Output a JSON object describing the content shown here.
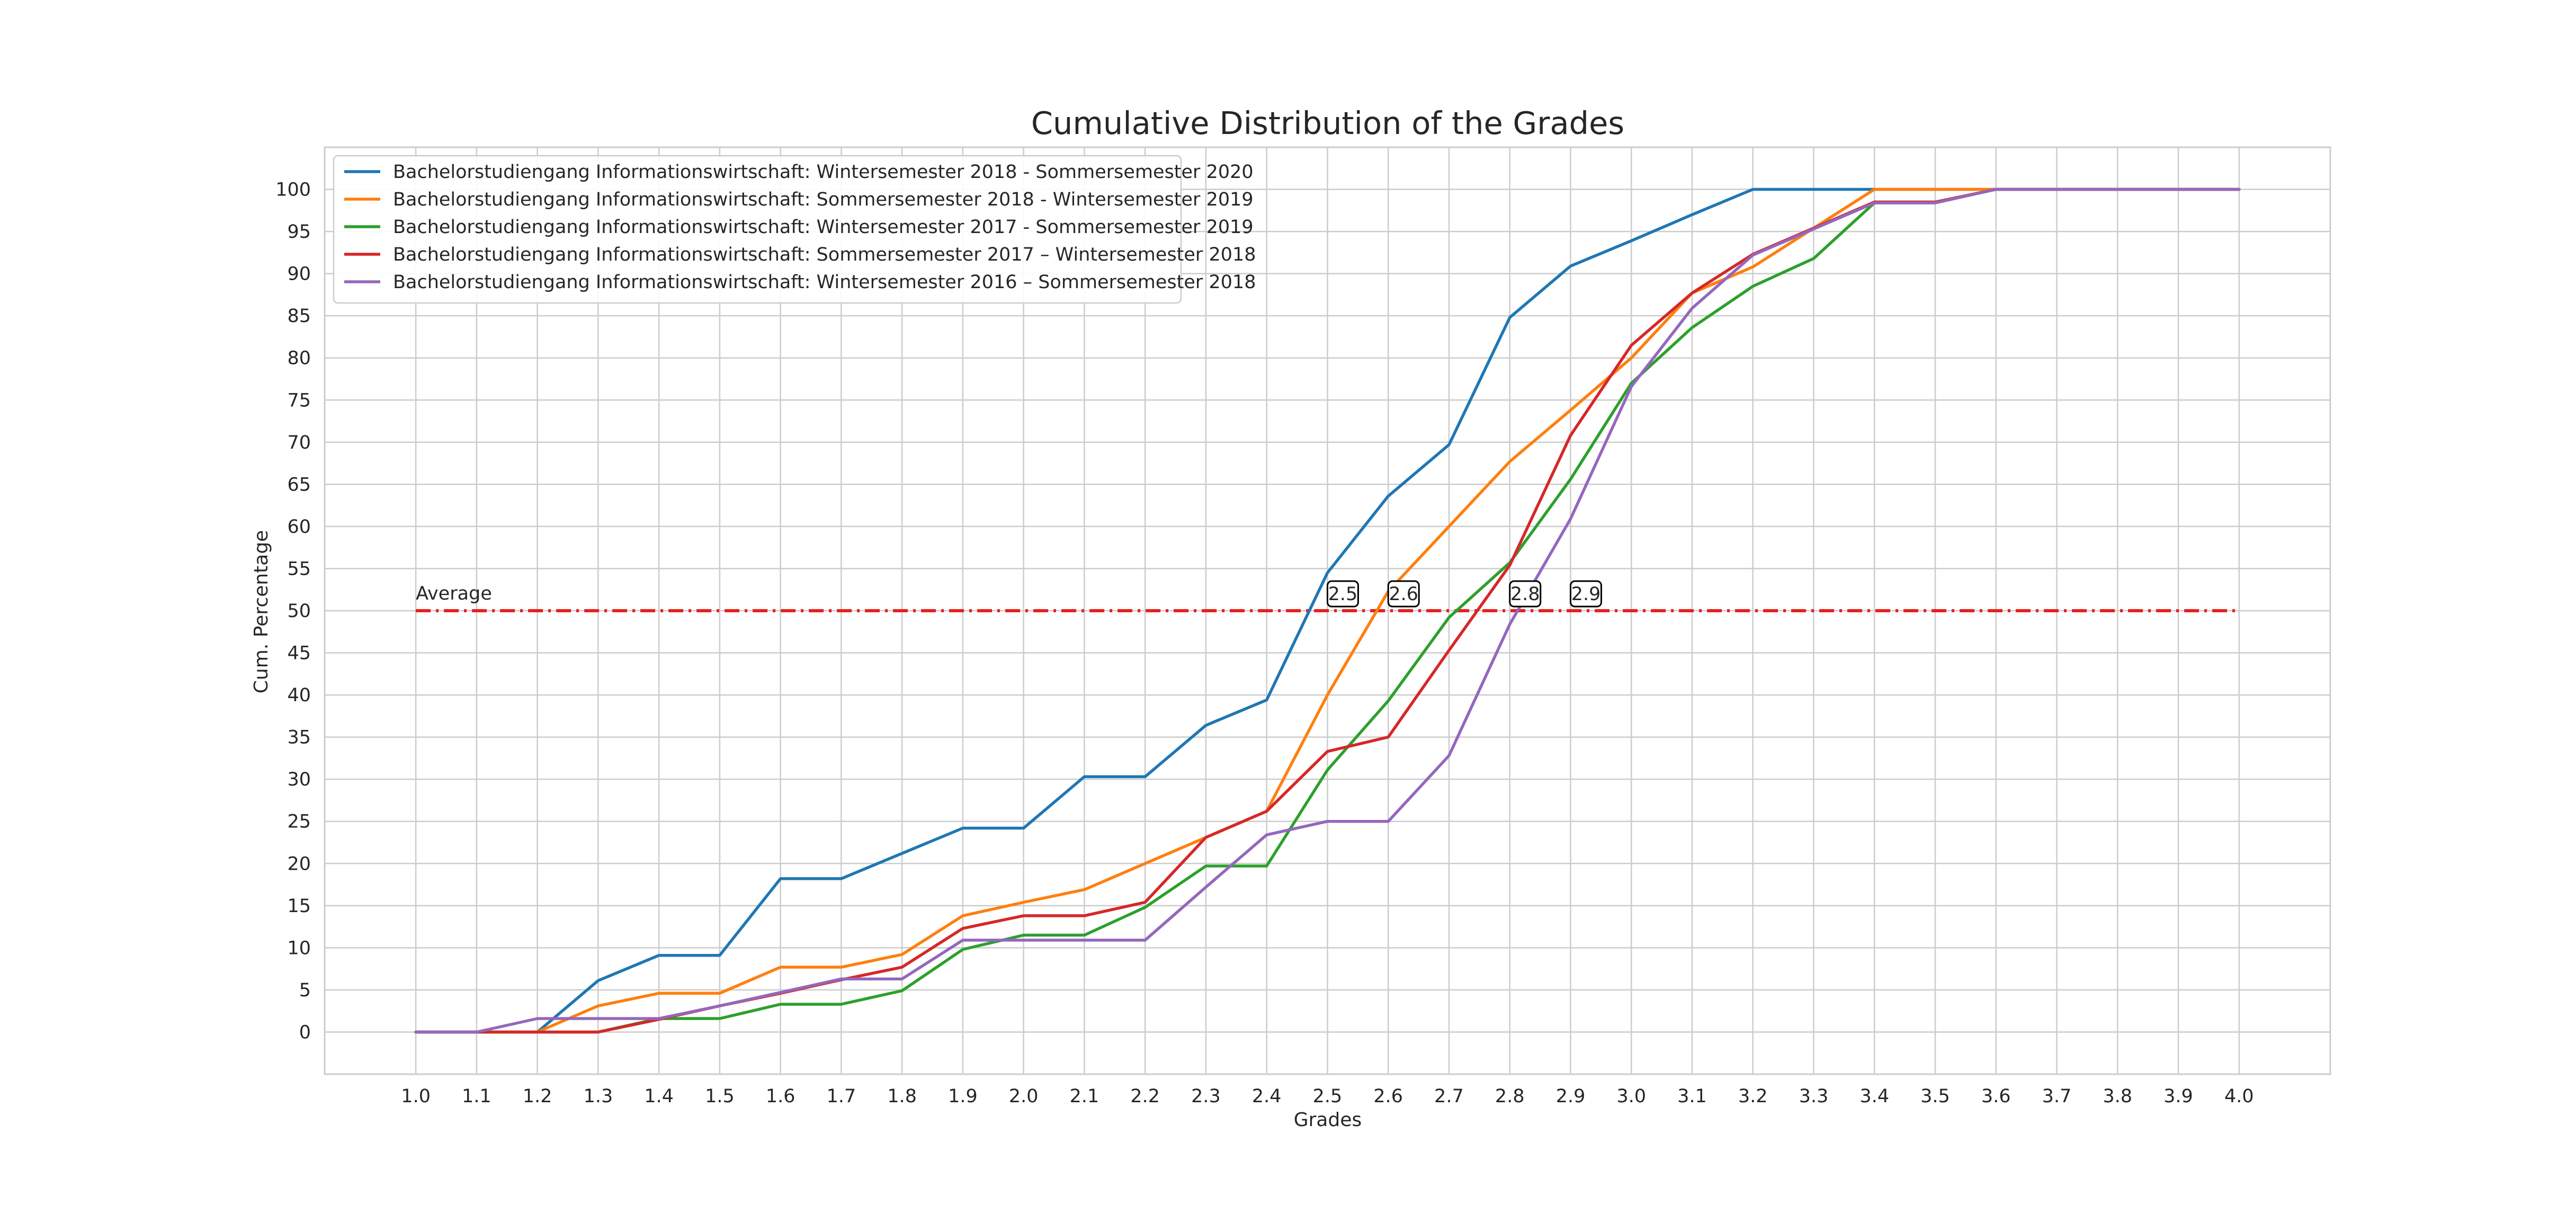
{
  "chart_data": {
    "type": "line",
    "title": "Cumulative Distribution of the Grades",
    "xlabel": "Grades",
    "ylabel": "Cum. Percentage",
    "grid": true,
    "legend_position": "upper-left",
    "xlim": [
      0.85,
      4.15
    ],
    "ylim": [
      -5,
      105
    ],
    "x": [
      1.0,
      1.1,
      1.2,
      1.3,
      1.4,
      1.5,
      1.6,
      1.7,
      1.8,
      1.9,
      2.0,
      2.1,
      2.2,
      2.3,
      2.4,
      2.5,
      2.6,
      2.7,
      2.8,
      2.9,
      3.0,
      3.1,
      3.2,
      3.3,
      3.4,
      3.5,
      3.6,
      3.7,
      3.8,
      3.9,
      4.0
    ],
    "x_tick_labels": [
      "1.0",
      "1.1",
      "1.2",
      "1.3",
      "1.4",
      "1.5",
      "1.6",
      "1.7",
      "1.8",
      "1.9",
      "2.0",
      "2.1",
      "2.2",
      "2.3",
      "2.4",
      "2.5",
      "2.6",
      "2.7",
      "2.8",
      "2.9",
      "3.0",
      "3.1",
      "3.2",
      "3.3",
      "3.4",
      "3.5",
      "3.6",
      "3.7",
      "3.8",
      "3.9",
      "4.0"
    ],
    "y_ticks": [
      0,
      5,
      10,
      15,
      20,
      25,
      30,
      35,
      40,
      45,
      50,
      55,
      60,
      65,
      70,
      75,
      80,
      85,
      90,
      95,
      100
    ],
    "y_tick_labels": [
      "0",
      "5",
      "10",
      "15",
      "20",
      "25",
      "30",
      "35",
      "40",
      "45",
      "50",
      "55",
      "60",
      "65",
      "70",
      "75",
      "80",
      "85",
      "90",
      "95",
      "100"
    ],
    "series": [
      {
        "name": "Bachelorstudiengang Informationswirtschaft: Wintersemester 2018 - Sommersemester 2020",
        "color": "#1f77b4",
        "values": [
          0,
          0,
          0,
          6.1,
          9.1,
          9.1,
          18.2,
          18.2,
          21.2,
          24.2,
          24.2,
          30.3,
          30.3,
          36.4,
          39.4,
          54.5,
          63.6,
          69.7,
          84.8,
          90.9,
          93.9,
          97.0,
          100,
          100,
          100,
          100,
          100,
          100,
          100,
          100,
          100
        ]
      },
      {
        "name": "Bachelorstudiengang Informationswirtschaft: Sommersemester 2018 - Wintersemester 2019",
        "color": "#ff7f0e",
        "values": [
          0,
          0,
          0,
          3.1,
          4.6,
          4.6,
          7.7,
          7.7,
          9.2,
          13.8,
          15.4,
          16.9,
          20.0,
          23.1,
          26.2,
          40.0,
          52.3,
          60.0,
          67.7,
          73.8,
          80.0,
          87.7,
          90.8,
          95.4,
          100,
          100,
          100,
          100,
          100,
          100,
          100
        ]
      },
      {
        "name": "Bachelorstudiengang Informationswirtschaft: Wintersemester 2017 - Sommersemester 2019",
        "color": "#2ca02c",
        "values": [
          0,
          0,
          0,
          0,
          1.6,
          1.6,
          3.3,
          3.3,
          4.9,
          9.8,
          11.5,
          11.5,
          14.8,
          19.7,
          19.7,
          31.1,
          39.3,
          49.2,
          55.7,
          65.6,
          77.0,
          83.6,
          88.5,
          91.8,
          98.4,
          98.4,
          100,
          100,
          100,
          100,
          100
        ]
      },
      {
        "name": "Bachelorstudiengang Informationswirtschaft: Sommersemester 2017 – Wintersemester 2018",
        "color": "#d62728",
        "values": [
          0,
          0,
          0,
          0,
          1.5,
          3.1,
          4.6,
          6.2,
          7.7,
          12.3,
          13.8,
          13.8,
          15.4,
          23.1,
          26.2,
          33.3,
          35.0,
          45.3,
          55.4,
          70.8,
          81.5,
          87.7,
          92.3,
          95.4,
          98.5,
          98.5,
          100,
          100,
          100,
          100,
          100
        ]
      },
      {
        "name": "Bachelorstudiengang Informationswirtschaft: Wintersemester 2016 – Sommersemester 2018",
        "color": "#9467bd",
        "values": [
          0,
          0,
          1.6,
          1.6,
          1.6,
          3.1,
          4.7,
          6.3,
          6.3,
          10.9,
          10.9,
          10.9,
          10.9,
          17.2,
          23.4,
          25.0,
          25.0,
          32.8,
          48.4,
          60.9,
          76.6,
          85.9,
          92.2,
          95.3,
          98.4,
          98.4,
          100,
          100,
          100,
          100,
          100
        ]
      }
    ],
    "reference_line": {
      "label": "Average",
      "y": 50,
      "x_range": [
        1.0,
        4.0
      ],
      "color": "#e8201e",
      "style": "dash-dot"
    },
    "annotations": [
      {
        "text": "2.5",
        "x": 2.5,
        "y": 52
      },
      {
        "text": "2.6",
        "x": 2.6,
        "y": 52
      },
      {
        "text": "2.8",
        "x": 2.8,
        "y": 52
      },
      {
        "text": "2.9",
        "x": 2.9,
        "y": 52
      }
    ]
  }
}
